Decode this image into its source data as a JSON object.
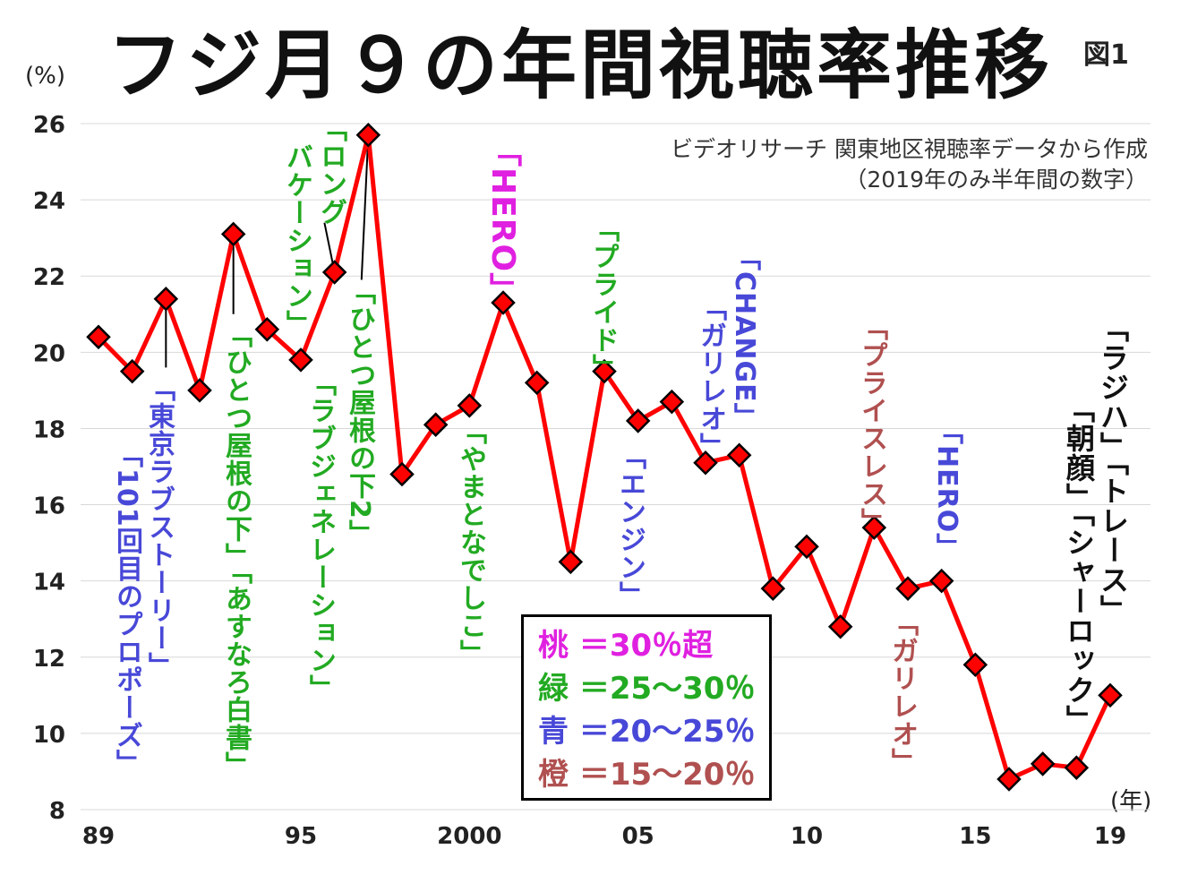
{
  "title": "フジ月９の年間視聴率推移",
  "figure_label": "図1",
  "source_line1": "ビデオリサーチ 関東地区視聴率データから作成",
  "source_line2": "（2019年のみ半年間の数字）",
  "chart_data": {
    "type": "line",
    "x": [
      1989,
      1990,
      1991,
      1992,
      1993,
      1994,
      1995,
      1996,
      1997,
      1998,
      1999,
      2000,
      2001,
      2002,
      2003,
      2004,
      2005,
      2006,
      2007,
      2008,
      2009,
      2010,
      2011,
      2012,
      2013,
      2014,
      2015,
      2016,
      2017,
      2018,
      2019
    ],
    "series": [
      {
        "values": [
          20.4,
          19.5,
          21.4,
          19.0,
          23.1,
          20.6,
          19.8,
          22.1,
          25.7,
          16.8,
          18.1,
          18.6,
          21.3,
          19.2,
          14.5,
          19.5,
          18.2,
          18.7,
          17.1,
          17.3,
          13.8,
          14.9,
          12.8,
          15.4,
          13.8,
          14.0,
          11.8,
          8.8,
          9.2,
          9.1,
          11.0
        ],
        "color": "#ff0000"
      }
    ],
    "xlabel": "(年)",
    "ylabel": "(%)",
    "ylim": [
      8,
      26
    ],
    "xlim": [
      1989,
      2019
    ],
    "y_ticks": [
      "8",
      "10",
      "12",
      "14",
      "16",
      "18",
      "20",
      "22",
      "24",
      "26"
    ],
    "x_ticks": [
      {
        "x": 1989,
        "label": "89"
      },
      {
        "x": 1995,
        "label": "95"
      },
      {
        "x": 2000,
        "label": "2000"
      },
      {
        "x": 2005,
        "label": "05"
      },
      {
        "x": 2010,
        "label": "10"
      },
      {
        "x": 2015,
        "label": "15"
      },
      {
        "x": 2019,
        "label": "19"
      }
    ],
    "grid": true,
    "legend": [
      {
        "label": "桃 ＝30％超",
        "color": "#e020e0"
      },
      {
        "label": "緑 ＝25～30％",
        "color": "#22aa22"
      },
      {
        "label": "青 ＝20～25％",
        "color": "#4848d8"
      },
      {
        "label": "橙 ＝15～20％",
        "color": "#b05050"
      }
    ],
    "legend_position": "bottom-center",
    "annotations": [
      {
        "text": "「101回目のプロポーズ」",
        "color": "#4848d8"
      },
      {
        "text": "「東京ラブストーリー」",
        "color": "#4848d8"
      },
      {
        "text": "「ひとつ屋根の下」「あすなろ白書」",
        "color": "#22aa22"
      },
      {
        "text": "「ロング",
        "color": "#22aa22"
      },
      {
        "text": "バケーション」",
        "color": "#22aa22"
      },
      {
        "text": "「ラブジェネレーション」",
        "color": "#22aa22"
      },
      {
        "text": "「ひとつ屋根の下2」",
        "color": "#22aa22"
      },
      {
        "text": "「やまとなでしこ」",
        "color": "#22aa22"
      },
      {
        "text": "「HERO」",
        "color": "#e020e0"
      },
      {
        "text": "「プライド」",
        "color": "#22aa22"
      },
      {
        "text": "「エンジン」",
        "color": "#4848d8"
      },
      {
        "text": "「CHANGE」",
        "color": "#4848d8"
      },
      {
        "text": "「ガリレオ」",
        "color": "#4848d8"
      },
      {
        "text": "「プライスレス」",
        "color": "#b05050"
      },
      {
        "text": "「ガリレオ」",
        "color": "#b05050"
      },
      {
        "text": "「HERO」",
        "color": "#4848d8"
      },
      {
        "text": "「ラジハ」「トレース」",
        "color": "#111111"
      },
      {
        "text": "「朝顔」「シャーロック」",
        "color": "#111111"
      }
    ]
  }
}
